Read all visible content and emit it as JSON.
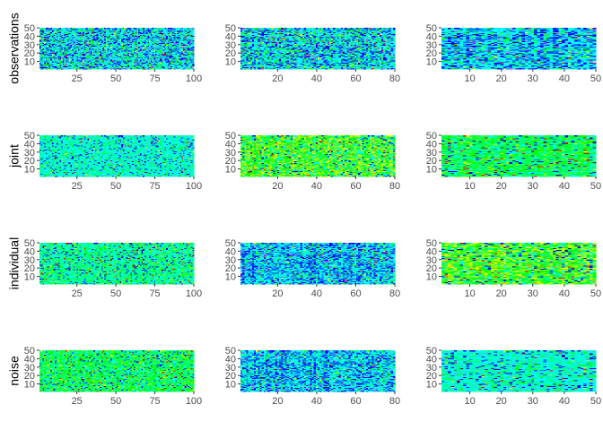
{
  "chart_data": {
    "type": "heatmap",
    "layout": "grid",
    "grid_rows": 4,
    "grid_cols": 3,
    "row_labels": [
      "observations",
      "joint",
      "individual",
      "noise"
    ],
    "colormap": "rainbow",
    "cell_gap": "none",
    "panels": [
      {
        "row": "observations",
        "x_range": [
          1,
          100
        ],
        "y_range": [
          1,
          50
        ],
        "x_ticks": [
          25,
          50,
          75,
          100
        ],
        "y_ticks": [
          10,
          20,
          30,
          40,
          50
        ],
        "dominant": "mixed-blue-cyan-green",
        "seed": 11
      },
      {
        "row": "observations",
        "x_range": [
          1,
          80
        ],
        "y_range": [
          1,
          50
        ],
        "x_ticks": [
          20,
          40,
          60,
          80
        ],
        "y_ticks": [
          10,
          20,
          30,
          40,
          50
        ],
        "dominant": "mixed-blue-cyan-green",
        "seed": 12
      },
      {
        "row": "observations",
        "x_range": [
          1,
          50
        ],
        "y_range": [
          1,
          50
        ],
        "x_ticks": [
          10,
          20,
          30,
          40,
          50
        ],
        "y_ticks": [
          10,
          20,
          30,
          40,
          50
        ],
        "dominant": "cyan-blue",
        "seed": 13
      },
      {
        "row": "joint",
        "x_range": [
          1,
          100
        ],
        "y_range": [
          1,
          50
        ],
        "x_ticks": [
          25,
          50,
          75,
          100
        ],
        "y_ticks": [
          10,
          20,
          30,
          40,
          50
        ],
        "dominant": "cyan-green",
        "seed": 21
      },
      {
        "row": "joint",
        "x_range": [
          1,
          80
        ],
        "y_range": [
          1,
          50
        ],
        "x_ticks": [
          20,
          40,
          60,
          80
        ],
        "y_ticks": [
          10,
          20,
          30,
          40,
          50
        ],
        "dominant": "green-yellow",
        "seed": 22
      },
      {
        "row": "joint",
        "x_range": [
          1,
          50
        ],
        "y_range": [
          1,
          50
        ],
        "x_ticks": [
          10,
          20,
          30,
          40,
          50
        ],
        "y_ticks": [
          10,
          20,
          30,
          40,
          50
        ],
        "dominant": "green",
        "seed": 23
      },
      {
        "row": "individual",
        "x_range": [
          1,
          100
        ],
        "y_range": [
          1,
          50
        ],
        "x_ticks": [
          25,
          50,
          75,
          100
        ],
        "y_ticks": [
          10,
          20,
          30,
          40,
          50
        ],
        "dominant": "green-cyan",
        "seed": 31
      },
      {
        "row": "individual",
        "x_range": [
          1,
          80
        ],
        "y_range": [
          1,
          50
        ],
        "x_ticks": [
          20,
          40,
          60,
          80
        ],
        "y_ticks": [
          10,
          20,
          30,
          40,
          50
        ],
        "dominant": "cyan-blue",
        "seed": 32
      },
      {
        "row": "individual",
        "x_range": [
          1,
          50
        ],
        "y_range": [
          1,
          50
        ],
        "x_ticks": [
          10,
          20,
          30,
          40,
          50
        ],
        "y_ticks": [
          10,
          20,
          30,
          40,
          50
        ],
        "dominant": "green-yellow",
        "seed": 33
      },
      {
        "row": "noise",
        "x_range": [
          1,
          100
        ],
        "y_range": [
          1,
          50
        ],
        "x_ticks": [
          25,
          50,
          75,
          100
        ],
        "y_ticks": [
          10,
          20,
          30,
          40,
          50
        ],
        "dominant": "green",
        "seed": 41
      },
      {
        "row": "noise",
        "x_range": [
          1,
          80
        ],
        "y_range": [
          1,
          50
        ],
        "x_ticks": [
          20,
          40,
          60,
          80
        ],
        "y_ticks": [
          10,
          20,
          30,
          40,
          50
        ],
        "dominant": "cyan-blue",
        "seed": 42
      },
      {
        "row": "noise",
        "x_range": [
          1,
          50
        ],
        "y_range": [
          1,
          50
        ],
        "x_ticks": [
          10,
          20,
          30,
          40,
          50
        ],
        "y_ticks": [
          10,
          20,
          30,
          40,
          50
        ],
        "dominant": "cyan-green",
        "seed": 43
      }
    ]
  }
}
